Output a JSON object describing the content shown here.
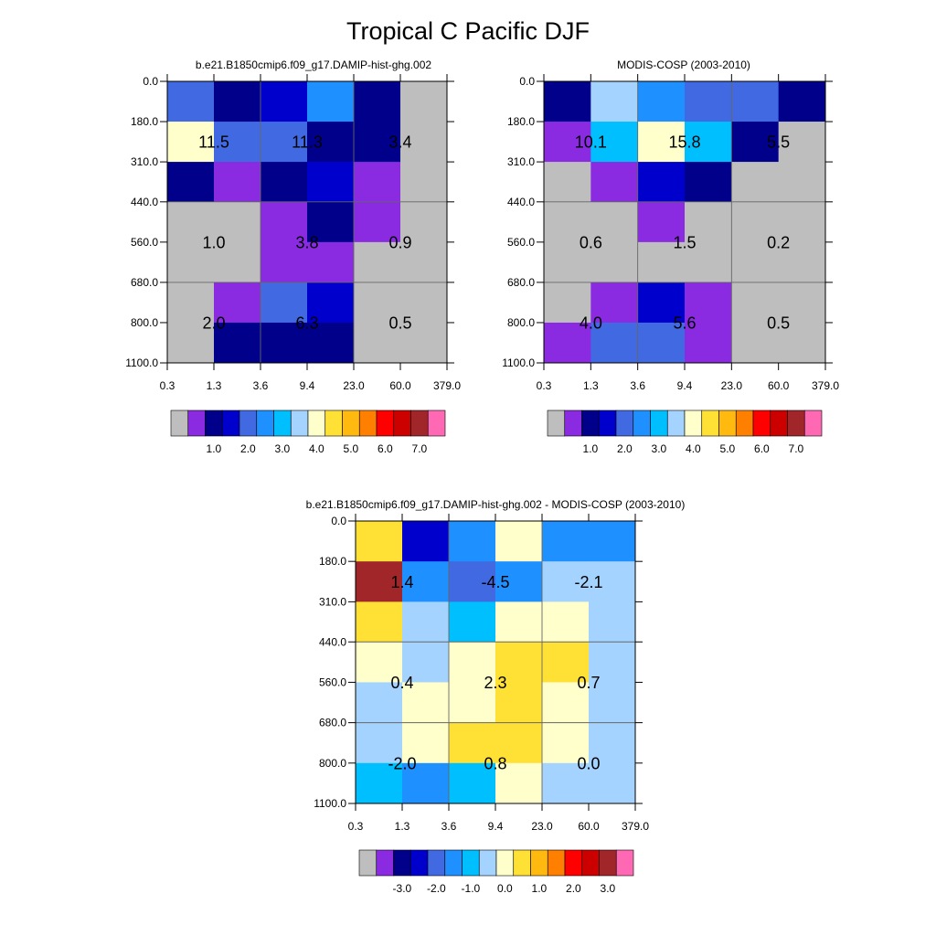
{
  "title": "Tropical C Pacific DJF",
  "panels": [
    {
      "id": "model",
      "title": "b.e21.B1850cmip6.f09_g17.DAMIP-hist-ghg.002",
      "colorbar": "abs"
    },
    {
      "id": "obs",
      "title": "MODIS-COSP (2003-2010)",
      "colorbar": "abs"
    },
    {
      "id": "diff",
      "title": "b.e21.B1850cmip6.f09_g17.DAMIP-hist-ghg.002 - MODIS-COSP (2003-2010)",
      "colorbar": "diff"
    }
  ],
  "chart_data": {
    "type": "heatmap",
    "x_tick_labels": [
      "0.3",
      "1.3",
      "3.6",
      "9.4",
      "23.0",
      "60.0",
      "379.0"
    ],
    "y_tick_labels": [
      "0.0",
      "180.0",
      "310.0",
      "440.0",
      "560.0",
      "680.0",
      "800.0",
      "1100.0"
    ],
    "cell_colors": [
      [
        [
          "#4169E1",
          "#00008B",
          "#0000CD",
          "#1E90FF",
          "#00008B",
          "#BEBEBE"
        ],
        [
          "#FFFFCC",
          "#4169E1",
          "#4169E1",
          "#00008B",
          "#00008B",
          "#BEBEBE"
        ],
        [
          "#00008B",
          "#8A2BE2",
          "#00008B",
          "#0000CD",
          "#8A2BE2",
          "#BEBEBE"
        ],
        [
          "#BEBEBE",
          "#BEBEBE",
          "#8A2BE2",
          "#00008B",
          "#8A2BE2",
          "#BEBEBE"
        ],
        [
          "#BEBEBE",
          "#BEBEBE",
          "#8A2BE2",
          "#8A2BE2",
          "#BEBEBE",
          "#BEBEBE"
        ],
        [
          "#BEBEBE",
          "#8A2BE2",
          "#4169E1",
          "#0000CD",
          "#BEBEBE",
          "#BEBEBE"
        ],
        [
          "#BEBEBE",
          "#00008B",
          "#00008B",
          "#00008B",
          "#BEBEBE",
          "#BEBEBE"
        ]
      ],
      [
        [
          "#00008B",
          "#A4D3FF",
          "#1E90FF",
          "#4169E1",
          "#4169E1",
          "#00008B"
        ],
        [
          "#8A2BE2",
          "#00BFFF",
          "#FFFFCC",
          "#00BFFF",
          "#00008B",
          "#BEBEBE"
        ],
        [
          "#BEBEBE",
          "#8A2BE2",
          "#0000CD",
          "#00008B",
          "#BEBEBE",
          "#BEBEBE"
        ],
        [
          "#BEBEBE",
          "#BEBEBE",
          "#8A2BE2",
          "#BEBEBE",
          "#BEBEBE",
          "#BEBEBE"
        ],
        [
          "#BEBEBE",
          "#BEBEBE",
          "#BEBEBE",
          "#BEBEBE",
          "#BEBEBE",
          "#BEBEBE"
        ],
        [
          "#BEBEBE",
          "#8A2BE2",
          "#0000CD",
          "#8A2BE2",
          "#BEBEBE",
          "#BEBEBE"
        ],
        [
          "#8A2BE2",
          "#4169E1",
          "#4169E1",
          "#8A2BE2",
          "#BEBEBE",
          "#BEBEBE"
        ]
      ],
      [
        [
          "#FFE135",
          "#0000CD",
          "#1E90FF",
          "#FFFFCC",
          "#1E90FF",
          "#1E90FF"
        ],
        [
          "#A0262A",
          "#1E90FF",
          "#4169E1",
          "#1E90FF",
          "#A4D3FF",
          "#A4D3FF"
        ],
        [
          "#FFE135",
          "#A4D3FF",
          "#00BFFF",
          "#FFFFCC",
          "#FFFFCC",
          "#A4D3FF"
        ],
        [
          "#FFFFCC",
          "#A4D3FF",
          "#FFFFCC",
          "#FFE135",
          "#FFE135",
          "#A4D3FF"
        ],
        [
          "#A4D3FF",
          "#FFFFCC",
          "#FFFFCC",
          "#FFE135",
          "#FFFFCC",
          "#A4D3FF"
        ],
        [
          "#A4D3FF",
          "#FFFFCC",
          "#FFE135",
          "#FFE135",
          "#FFFFCC",
          "#A4D3FF"
        ],
        [
          "#00BFFF",
          "#1E90FF",
          "#00BFFF",
          "#FFFFCC",
          "#A4D3FF",
          "#A4D3FF"
        ]
      ]
    ],
    "annotations": [
      [
        {
          "label": "11.5",
          "xlim": [
            0,
            2
          ],
          "ylim": [
            1,
            2
          ]
        },
        {
          "label": "11.3",
          "xlim": [
            2,
            4
          ],
          "ylim": [
            1,
            2
          ]
        },
        {
          "label": "3.4",
          "xlim": [
            4,
            6
          ],
          "ylim": [
            1,
            2
          ]
        },
        {
          "label": "1.0",
          "xlim": [
            0,
            2
          ],
          "ylim": [
            3,
            5
          ]
        },
        {
          "label": "3.8",
          "xlim": [
            2,
            4
          ],
          "ylim": [
            3,
            5
          ]
        },
        {
          "label": "0.9",
          "xlim": [
            4,
            6
          ],
          "ylim": [
            3,
            5
          ]
        },
        {
          "label": "2.0",
          "xlim": [
            0,
            2
          ],
          "ylim": [
            5,
            7
          ]
        },
        {
          "label": "6.3",
          "xlim": [
            2,
            4
          ],
          "ylim": [
            5,
            7
          ]
        },
        {
          "label": "0.5",
          "xlim": [
            4,
            6
          ],
          "ylim": [
            5,
            7
          ]
        }
      ],
      [
        {
          "label": "10.1",
          "xlim": [
            0,
            2
          ],
          "ylim": [
            1,
            2
          ]
        },
        {
          "label": "15.8",
          "xlim": [
            2,
            4
          ],
          "ylim": [
            1,
            2
          ]
        },
        {
          "label": "5.5",
          "xlim": [
            4,
            6
          ],
          "ylim": [
            1,
            2
          ]
        },
        {
          "label": "0.6",
          "xlim": [
            0,
            2
          ],
          "ylim": [
            3,
            5
          ]
        },
        {
          "label": "1.5",
          "xlim": [
            2,
            4
          ],
          "ylim": [
            3,
            5
          ]
        },
        {
          "label": "0.2",
          "xlim": [
            4,
            6
          ],
          "ylim": [
            3,
            5
          ]
        },
        {
          "label": "4.0",
          "xlim": [
            0,
            2
          ],
          "ylim": [
            5,
            7
          ]
        },
        {
          "label": "5.6",
          "xlim": [
            2,
            4
          ],
          "ylim": [
            5,
            7
          ]
        },
        {
          "label": "0.5",
          "xlim": [
            4,
            6
          ],
          "ylim": [
            5,
            7
          ]
        }
      ],
      [
        {
          "label": "1.4",
          "xlim": [
            0,
            2
          ],
          "ylim": [
            1,
            2
          ]
        },
        {
          "label": "-4.5",
          "xlim": [
            2,
            4
          ],
          "ylim": [
            1,
            2
          ]
        },
        {
          "label": "-2.1",
          "xlim": [
            4,
            6
          ],
          "ylim": [
            1,
            2
          ]
        },
        {
          "label": "0.4",
          "xlim": [
            0,
            2
          ],
          "ylim": [
            3,
            5
          ]
        },
        {
          "label": "2.3",
          "xlim": [
            2,
            4
          ],
          "ylim": [
            3,
            5
          ]
        },
        {
          "label": "0.7",
          "xlim": [
            4,
            6
          ],
          "ylim": [
            3,
            5
          ]
        },
        {
          "label": "-2.0",
          "xlim": [
            0,
            2
          ],
          "ylim": [
            5,
            7
          ]
        },
        {
          "label": "0.8",
          "xlim": [
            2,
            4
          ],
          "ylim": [
            5,
            7
          ]
        },
        {
          "label": "0.0",
          "xlim": [
            4,
            6
          ],
          "ylim": [
            5,
            7
          ]
        }
      ]
    ],
    "colorbars": {
      "abs": {
        "colors": [
          "#BEBEBE",
          "#8A2BE2",
          "#00008B",
          "#0000CD",
          "#4169E1",
          "#1E90FF",
          "#00BFFF",
          "#A4D3FF",
          "#FFFFCC",
          "#FFE135",
          "#FFB90F",
          "#FF7F00",
          "#FF0000",
          "#CD0000",
          "#A0262A",
          "#FF69B4"
        ],
        "labels": [
          "1.0",
          "2.0",
          "3.0",
          "4.0",
          "5.0",
          "6.0",
          "7.0"
        ],
        "label_positions": [
          2,
          4,
          6,
          8,
          10,
          12,
          14
        ]
      },
      "diff": {
        "colors": [
          "#BEBEBE",
          "#8A2BE2",
          "#00008B",
          "#0000CD",
          "#4169E1",
          "#1E90FF",
          "#00BFFF",
          "#A4D3FF",
          "#FFFFCC",
          "#FFE135",
          "#FFB90F",
          "#FF7F00",
          "#FF0000",
          "#CD0000",
          "#A0262A",
          "#FF69B4"
        ],
        "labels": [
          "-3.0",
          "-2.0",
          "-1.0",
          "0.0",
          "1.0",
          "2.0",
          "3.0"
        ],
        "label_positions": [
          2,
          4,
          6,
          8,
          10,
          12,
          14
        ]
      }
    }
  }
}
